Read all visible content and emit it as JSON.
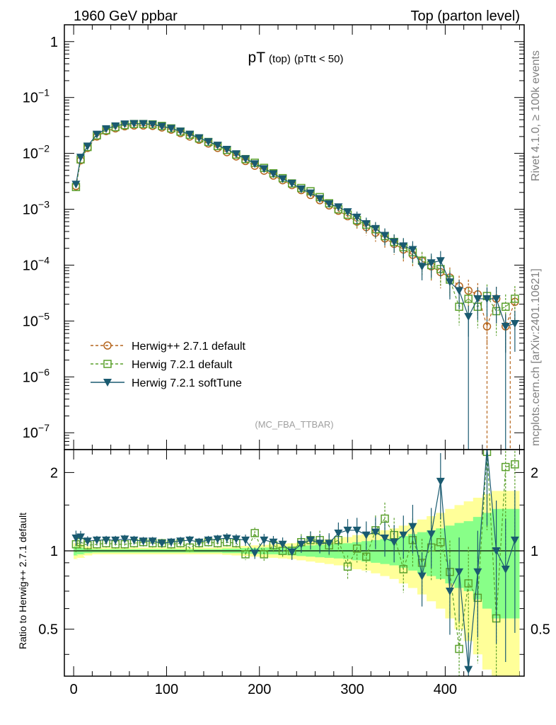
{
  "header": {
    "left": "1960 GeV ppbar",
    "right": "Top (parton level)"
  },
  "title": {
    "main": "pT",
    "sub1": "(top)",
    "sub2": "(pTtt < 50)"
  },
  "analysis_tag": "(MC_FBA_TTBAR)",
  "side_labels": {
    "rivet": "Rivet 4.1.0, ≥ 100k events",
    "mcplots": "mcplots.cern.ch [arXiv:2401.10621]"
  },
  "legend": [
    {
      "name": "Herwig++ 2.7.1 default",
      "color": "#b5651d",
      "marker": "circle",
      "dash": true
    },
    {
      "name": "Herwig 7.2.1 default",
      "color": "#5aa02c",
      "marker": "square",
      "dash": true
    },
    {
      "name": "Herwig 7.2.1 softTune",
      "color": "#1a5a70",
      "marker": "triangle",
      "dash": false
    }
  ],
  "colors": {
    "band_yellow": "#ffff99",
    "band_green": "#88ff88"
  },
  "chart_data": [
    {
      "type": "line",
      "panel": "main",
      "yscale": "log",
      "ylim": [
        5e-08,
        2
      ],
      "xlim": [
        -10,
        485
      ],
      "yticks": [
        {
          "v": 1,
          "base": "1",
          "exp": ""
        },
        {
          "v": 0.1,
          "base": "10",
          "exp": "−1"
        },
        {
          "v": 0.01,
          "base": "10",
          "exp": "−2"
        },
        {
          "v": 0.001,
          "base": "10",
          "exp": "−3"
        },
        {
          "v": 0.0001,
          "base": "10",
          "exp": "−4"
        },
        {
          "v": 1e-05,
          "base": "10",
          "exp": "−5"
        },
        {
          "v": 1e-06,
          "base": "10",
          "exp": "−6"
        },
        {
          "v": 1e-07,
          "base": "10",
          "exp": "−7"
        }
      ],
      "series": [
        {
          "name": "Herwig++ 2.7.1 default",
          "x": [
            2.5,
            7.5,
            15,
            25,
            35,
            45,
            55,
            65,
            75,
            85,
            95,
            105,
            115,
            125,
            135,
            145,
            155,
            165,
            175,
            185,
            195,
            205,
            215,
            225,
            235,
            245,
            255,
            265,
            275,
            285,
            295,
            305,
            315,
            325,
            335,
            345,
            355,
            365,
            375,
            385,
            395,
            405,
            415,
            425,
            435,
            445,
            455,
            465,
            475
          ],
          "y": [
            0.0026,
            0.0075,
            0.0125,
            0.02,
            0.025,
            0.028,
            0.0305,
            0.0315,
            0.0315,
            0.031,
            0.029,
            0.0265,
            0.023,
            0.02,
            0.0175,
            0.015,
            0.0125,
            0.0105,
            0.0088,
            0.0073,
            0.006,
            0.0049,
            0.004,
            0.0033,
            0.0027,
            0.0022,
            0.0018,
            0.00145,
            0.00117,
            0.00094,
            0.00075,
            0.0006,
            0.00048,
            0.00038,
            0.0003,
            0.00024,
            0.00019,
            0.000153,
            0.000118,
            9.5e-05,
            7.5e-05,
            6e-05,
            4.2e-05,
            3.5e-05,
            3e-05,
            8e-06,
            2.5e-05,
            8e-06,
            2.2e-05
          ]
        },
        {
          "name": "Herwig 7.2.1 default",
          "x": [
            2.5,
            7.5,
            15,
            25,
            35,
            45,
            55,
            65,
            75,
            85,
            95,
            105,
            115,
            125,
            135,
            145,
            155,
            165,
            175,
            185,
            195,
            205,
            215,
            225,
            235,
            245,
            255,
            265,
            275,
            285,
            295,
            305,
            315,
            325,
            335,
            345,
            355,
            365,
            375,
            385,
            395,
            405,
            415,
            425,
            435,
            445,
            455,
            465,
            475
          ],
          "y": [
            0.0025,
            0.0078,
            0.013,
            0.021,
            0.026,
            0.0295,
            0.032,
            0.0335,
            0.0335,
            0.033,
            0.031,
            0.028,
            0.0245,
            0.0215,
            0.0185,
            0.016,
            0.0135,
            0.0115,
            0.0095,
            0.0079,
            0.0068,
            0.0055,
            0.0044,
            0.0036,
            0.0029,
            0.0024,
            0.0021,
            0.00165,
            0.00128,
            0.001,
            0.0008,
            0.00064,
            0.00053,
            0.00044,
            0.00033,
            0.00026,
            0.00021,
            0.00017,
            0.00012,
            0.0001,
            8.5e-05,
            5.5e-05,
            1.8e-05,
            2.5e-05,
            1.8e-05,
            2.8e-05,
            1.5e-05,
            1.8e-05,
            2.5e-05
          ]
        },
        {
          "name": "Herwig 7.2.1 softTune",
          "x": [
            2.5,
            7.5,
            15,
            25,
            35,
            45,
            55,
            65,
            75,
            85,
            95,
            105,
            115,
            125,
            135,
            145,
            155,
            165,
            175,
            185,
            195,
            205,
            215,
            225,
            235,
            245,
            255,
            265,
            275,
            285,
            295,
            305,
            315,
            325,
            335,
            345,
            355,
            365,
            375,
            385,
            395,
            405,
            415,
            425,
            435,
            445,
            455,
            465,
            475
          ],
          "y": [
            0.0028,
            0.0085,
            0.0135,
            0.022,
            0.0275,
            0.031,
            0.0335,
            0.034,
            0.034,
            0.033,
            0.0305,
            0.028,
            0.025,
            0.022,
            0.019,
            0.0162,
            0.014,
            0.0118,
            0.0098,
            0.008,
            0.0065,
            0.0053,
            0.0043,
            0.0035,
            0.0029,
            0.0023,
            0.00195,
            0.00155,
            0.00125,
            0.0011,
            0.0009,
            0.00072,
            0.00055,
            0.00045,
            0.00034,
            0.00026,
            0.00022,
            0.00019,
            9.5e-05,
            0.00011,
            0.00012,
            5e-05,
            3.5e-05,
            1.2e-05,
            2.5e-05,
            2.5e-05,
            2.5e-05,
            8e-06,
            9e-06
          ]
        }
      ]
    },
    {
      "type": "line",
      "panel": "ratio",
      "yscale": "log",
      "ylim": [
        0.33,
        2.45
      ],
      "xlim": [
        -10,
        485
      ],
      "ylabel": "Ratio to Herwig++ 2.7.1 default",
      "yticks": [
        {
          "v": 0.5,
          "label": "0.5"
        },
        {
          "v": 1,
          "label": "1"
        },
        {
          "v": 2,
          "label": "2"
        }
      ],
      "xticks": [
        {
          "v": 0,
          "label": "0"
        },
        {
          "v": 100,
          "label": "100"
        },
        {
          "v": 200,
          "label": "200"
        },
        {
          "v": 300,
          "label": "300"
        },
        {
          "v": 400,
          "label": "400"
        }
      ],
      "x": [
        2.5,
        7.5,
        15,
        25,
        35,
        45,
        55,
        65,
        75,
        85,
        95,
        105,
        115,
        125,
        135,
        145,
        155,
        165,
        175,
        185,
        195,
        205,
        215,
        225,
        235,
        245,
        255,
        265,
        275,
        285,
        295,
        305,
        315,
        325,
        335,
        345,
        355,
        365,
        375,
        385,
        395,
        405,
        415,
        425,
        435,
        445,
        455,
        465,
        475
      ],
      "band_yellow": [
        0.07,
        0.06,
        0.04,
        0.03,
        0.03,
        0.03,
        0.03,
        0.03,
        0.03,
        0.03,
        0.03,
        0.03,
        0.03,
        0.03,
        0.03,
        0.03,
        0.03,
        0.035,
        0.04,
        0.045,
        0.05,
        0.055,
        0.06,
        0.065,
        0.07,
        0.08,
        0.09,
        0.1,
        0.11,
        0.12,
        0.13,
        0.15,
        0.16,
        0.18,
        0.2,
        0.22,
        0.25,
        0.28,
        0.32,
        0.36,
        0.4,
        0.45,
        0.5,
        0.55,
        0.6,
        0.65,
        0.7,
        0.7,
        0.7
      ],
      "band_green": [
        0.04,
        0.03,
        0.02,
        0.015,
        0.015,
        0.015,
        0.015,
        0.015,
        0.015,
        0.015,
        0.015,
        0.015,
        0.015,
        0.015,
        0.015,
        0.015,
        0.015,
        0.02,
        0.02,
        0.025,
        0.025,
        0.03,
        0.03,
        0.035,
        0.04,
        0.045,
        0.05,
        0.055,
        0.06,
        0.065,
        0.07,
        0.08,
        0.09,
        0.1,
        0.11,
        0.12,
        0.14,
        0.16,
        0.18,
        0.2,
        0.22,
        0.25,
        0.28,
        0.3,
        0.35,
        0.4,
        0.45,
        0.45,
        0.45
      ],
      "series": [
        {
          "name": "Herwig 7.2.1 default",
          "values": [
            1.06,
            1.08,
            1.05,
            1.06,
            1.07,
            1.06,
            1.06,
            1.07,
            1.08,
            1.07,
            1.07,
            1.06,
            1.07,
            1.03,
            1.07,
            1.08,
            1.07,
            1.08,
            1.07,
            0.97,
            1.17,
            0.97,
            1.05,
            1.0,
            1.0,
            1.08,
            1.1,
            1.1,
            1.05,
            1.1,
            0.87,
            1.02,
            0.95,
            1.2,
            1.33,
            1.15,
            0.85,
            1.1,
            0.9,
            1.03,
            1.08,
            0.83,
            0.42,
            0.75,
            0.66,
            2.4,
            0.55,
            2.1,
            2.15
          ]
        },
        {
          "name": "Herwig 7.2.1 softTune",
          "values": [
            1.12,
            1.13,
            1.09,
            1.1,
            1.1,
            1.1,
            1.11,
            1.1,
            1.09,
            1.09,
            1.07,
            1.08,
            1.09,
            1.1,
            1.08,
            1.1,
            1.11,
            1.12,
            1.11,
            1.1,
            0.98,
            1.1,
            1.08,
            1.06,
            0.99,
            1.06,
            1.1,
            1.07,
            1.07,
            1.17,
            1.2,
            1.2,
            1.15,
            1.18,
            1.12,
            1.08,
            1.15,
            1.24,
            0.8,
            1.16,
            1.85,
            0.7,
            0.83,
            0.35,
            0.83,
            2.5,
            1.0,
            0.85,
            1.1
          ]
        }
      ]
    }
  ]
}
